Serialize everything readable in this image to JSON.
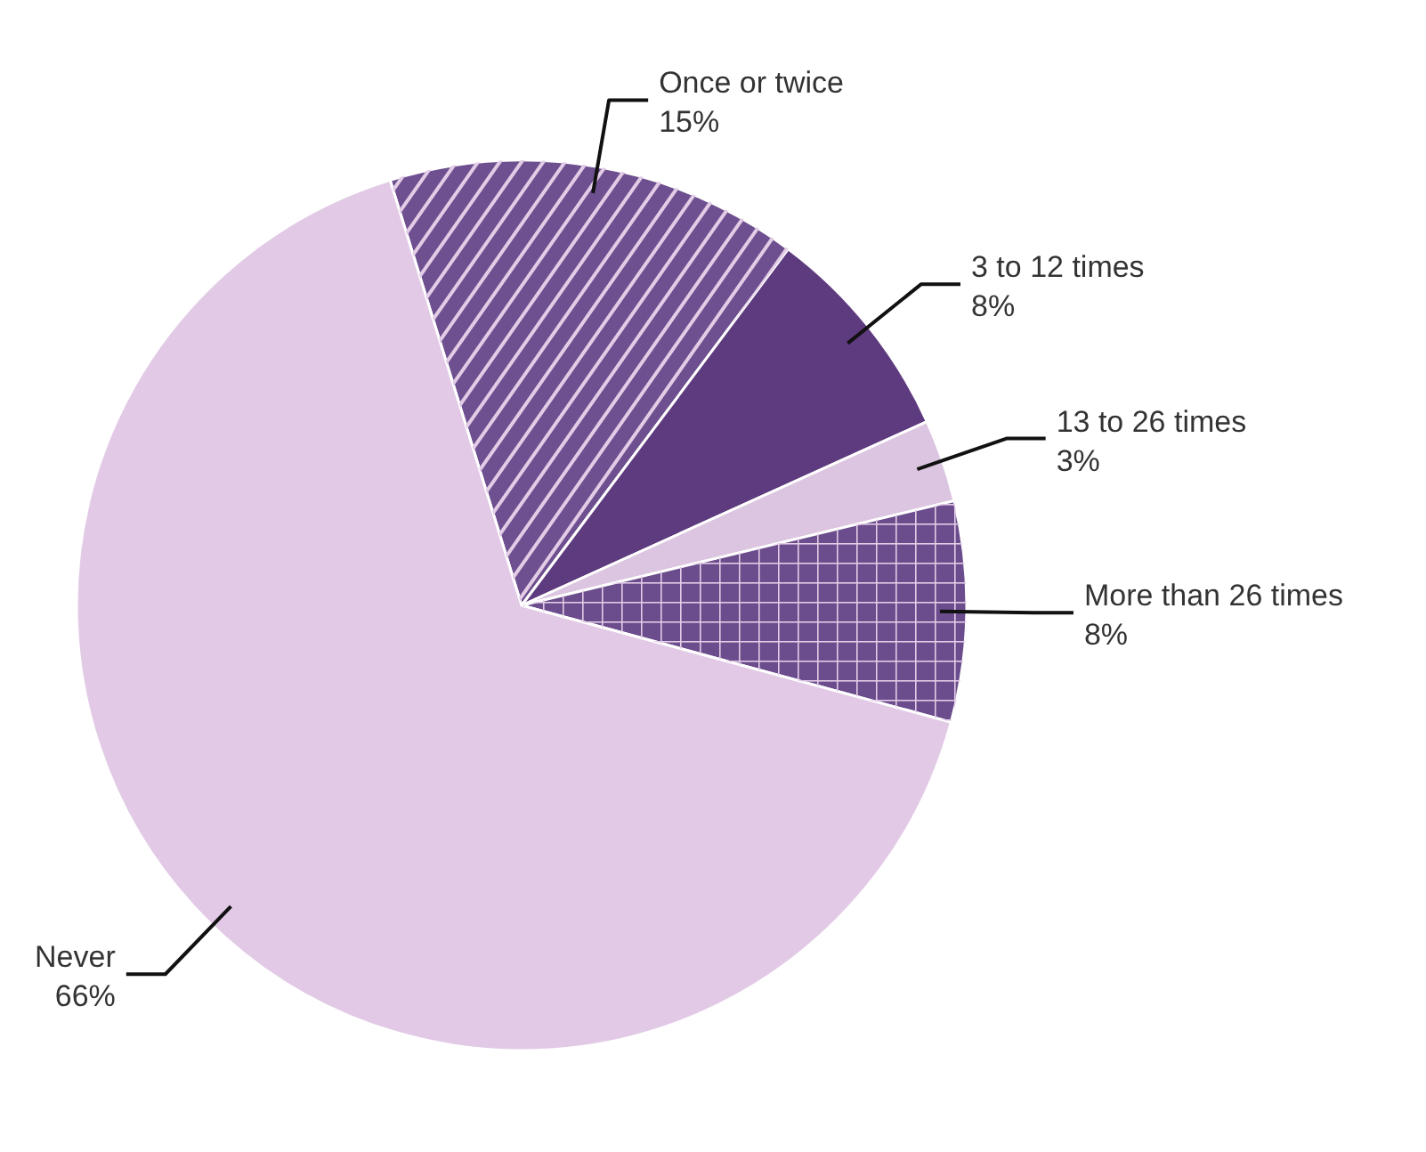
{
  "chart_data": {
    "type": "pie",
    "categories": [
      "Once or twice",
      "3 to 12 times",
      "13 to 26 times",
      "More than 26 times",
      "Never"
    ],
    "values": [
      15,
      8,
      3,
      8,
      66
    ],
    "colors": [
      "#6e4f8f",
      "#5e3a7e",
      "#dcc5e0",
      "#6b4c8c",
      "#e2cae6"
    ],
    "value_labels": [
      "15%",
      "8%",
      "3%",
      "8%",
      "66%"
    ]
  }
}
